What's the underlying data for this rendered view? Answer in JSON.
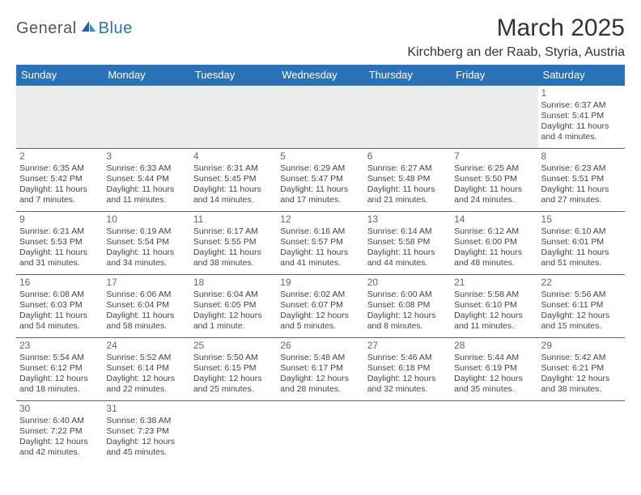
{
  "logo": {
    "text1": "General",
    "text2": "Blue"
  },
  "title": "March 2025",
  "location": "Kirchberg an der Raab, Styria, Austria",
  "calendar": {
    "columns": [
      "Sunday",
      "Monday",
      "Tuesday",
      "Wednesday",
      "Thursday",
      "Friday",
      "Saturday"
    ],
    "header_bg": "#2a71b8",
    "header_fg": "#ffffff",
    "border_color": "#2a71b8",
    "empty_bg": "#ececec",
    "weeks": [
      [
        null,
        null,
        null,
        null,
        null,
        null,
        {
          "n": "1",
          "sr": "Sunrise: 6:37 AM",
          "ss": "Sunset: 5:41 PM",
          "dl": "Daylight: 11 hours and 4 minutes."
        }
      ],
      [
        {
          "n": "2",
          "sr": "Sunrise: 6:35 AM",
          "ss": "Sunset: 5:42 PM",
          "dl": "Daylight: 11 hours and 7 minutes."
        },
        {
          "n": "3",
          "sr": "Sunrise: 6:33 AM",
          "ss": "Sunset: 5:44 PM",
          "dl": "Daylight: 11 hours and 11 minutes."
        },
        {
          "n": "4",
          "sr": "Sunrise: 6:31 AM",
          "ss": "Sunset: 5:45 PM",
          "dl": "Daylight: 11 hours and 14 minutes."
        },
        {
          "n": "5",
          "sr": "Sunrise: 6:29 AM",
          "ss": "Sunset: 5:47 PM",
          "dl": "Daylight: 11 hours and 17 minutes."
        },
        {
          "n": "6",
          "sr": "Sunrise: 6:27 AM",
          "ss": "Sunset: 5:48 PM",
          "dl": "Daylight: 11 hours and 21 minutes."
        },
        {
          "n": "7",
          "sr": "Sunrise: 6:25 AM",
          "ss": "Sunset: 5:50 PM",
          "dl": "Daylight: 11 hours and 24 minutes."
        },
        {
          "n": "8",
          "sr": "Sunrise: 6:23 AM",
          "ss": "Sunset: 5:51 PM",
          "dl": "Daylight: 11 hours and 27 minutes."
        }
      ],
      [
        {
          "n": "9",
          "sr": "Sunrise: 6:21 AM",
          "ss": "Sunset: 5:53 PM",
          "dl": "Daylight: 11 hours and 31 minutes."
        },
        {
          "n": "10",
          "sr": "Sunrise: 6:19 AM",
          "ss": "Sunset: 5:54 PM",
          "dl": "Daylight: 11 hours and 34 minutes."
        },
        {
          "n": "11",
          "sr": "Sunrise: 6:17 AM",
          "ss": "Sunset: 5:55 PM",
          "dl": "Daylight: 11 hours and 38 minutes."
        },
        {
          "n": "12",
          "sr": "Sunrise: 6:16 AM",
          "ss": "Sunset: 5:57 PM",
          "dl": "Daylight: 11 hours and 41 minutes."
        },
        {
          "n": "13",
          "sr": "Sunrise: 6:14 AM",
          "ss": "Sunset: 5:58 PM",
          "dl": "Daylight: 11 hours and 44 minutes."
        },
        {
          "n": "14",
          "sr": "Sunrise: 6:12 AM",
          "ss": "Sunset: 6:00 PM",
          "dl": "Daylight: 11 hours and 48 minutes."
        },
        {
          "n": "15",
          "sr": "Sunrise: 6:10 AM",
          "ss": "Sunset: 6:01 PM",
          "dl": "Daylight: 11 hours and 51 minutes."
        }
      ],
      [
        {
          "n": "16",
          "sr": "Sunrise: 6:08 AM",
          "ss": "Sunset: 6:03 PM",
          "dl": "Daylight: 11 hours and 54 minutes."
        },
        {
          "n": "17",
          "sr": "Sunrise: 6:06 AM",
          "ss": "Sunset: 6:04 PM",
          "dl": "Daylight: 11 hours and 58 minutes."
        },
        {
          "n": "18",
          "sr": "Sunrise: 6:04 AM",
          "ss": "Sunset: 6:05 PM",
          "dl": "Daylight: 12 hours and 1 minute."
        },
        {
          "n": "19",
          "sr": "Sunrise: 6:02 AM",
          "ss": "Sunset: 6:07 PM",
          "dl": "Daylight: 12 hours and 5 minutes."
        },
        {
          "n": "20",
          "sr": "Sunrise: 6:00 AM",
          "ss": "Sunset: 6:08 PM",
          "dl": "Daylight: 12 hours and 8 minutes."
        },
        {
          "n": "21",
          "sr": "Sunrise: 5:58 AM",
          "ss": "Sunset: 6:10 PM",
          "dl": "Daylight: 12 hours and 11 minutes."
        },
        {
          "n": "22",
          "sr": "Sunrise: 5:56 AM",
          "ss": "Sunset: 6:11 PM",
          "dl": "Daylight: 12 hours and 15 minutes."
        }
      ],
      [
        {
          "n": "23",
          "sr": "Sunrise: 5:54 AM",
          "ss": "Sunset: 6:12 PM",
          "dl": "Daylight: 12 hours and 18 minutes."
        },
        {
          "n": "24",
          "sr": "Sunrise: 5:52 AM",
          "ss": "Sunset: 6:14 PM",
          "dl": "Daylight: 12 hours and 22 minutes."
        },
        {
          "n": "25",
          "sr": "Sunrise: 5:50 AM",
          "ss": "Sunset: 6:15 PM",
          "dl": "Daylight: 12 hours and 25 minutes."
        },
        {
          "n": "26",
          "sr": "Sunrise: 5:48 AM",
          "ss": "Sunset: 6:17 PM",
          "dl": "Daylight: 12 hours and 28 minutes."
        },
        {
          "n": "27",
          "sr": "Sunrise: 5:46 AM",
          "ss": "Sunset: 6:18 PM",
          "dl": "Daylight: 12 hours and 32 minutes."
        },
        {
          "n": "28",
          "sr": "Sunrise: 5:44 AM",
          "ss": "Sunset: 6:19 PM",
          "dl": "Daylight: 12 hours and 35 minutes."
        },
        {
          "n": "29",
          "sr": "Sunrise: 5:42 AM",
          "ss": "Sunset: 6:21 PM",
          "dl": "Daylight: 12 hours and 38 minutes."
        }
      ],
      [
        {
          "n": "30",
          "sr": "Sunrise: 6:40 AM",
          "ss": "Sunset: 7:22 PM",
          "dl": "Daylight: 12 hours and 42 minutes."
        },
        {
          "n": "31",
          "sr": "Sunrise: 6:38 AM",
          "ss": "Sunset: 7:23 PM",
          "dl": "Daylight: 12 hours and 45 minutes."
        },
        null,
        null,
        null,
        null,
        null
      ]
    ]
  }
}
